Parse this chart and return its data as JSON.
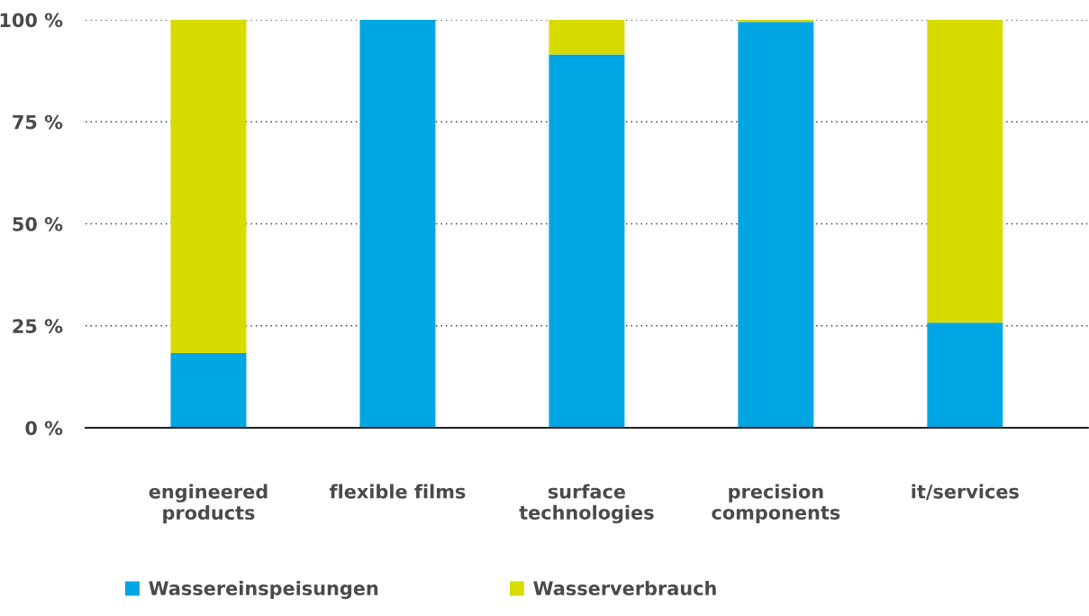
{
  "chart_data": {
    "type": "bar",
    "stacked": true,
    "categories": [
      "engineered\nproducts",
      "flexible films",
      "surface\ntechnologies",
      "precision\ncomponents",
      "it/services"
    ],
    "series": [
      {
        "name": "Wassereinspeisungen",
        "color": "#00a6e4",
        "values": [
          18.3,
          100,
          91.5,
          99.5,
          25.8
        ]
      },
      {
        "name": "Wasserverbrauch",
        "color": "#d7db00",
        "values": [
          81.7,
          0,
          8.5,
          0.5,
          74.2
        ]
      }
    ],
    "ylim": [
      0,
      100
    ],
    "yticks": [
      {
        "value": 0,
        "label": "0 %"
      },
      {
        "value": 25,
        "label": "25 %"
      },
      {
        "value": 50,
        "label": "50 %"
      },
      {
        "value": 75,
        "label": "75 %"
      },
      {
        "value": 100,
        "label": "100 %"
      }
    ],
    "grid": "y",
    "legend": "bottom left"
  }
}
